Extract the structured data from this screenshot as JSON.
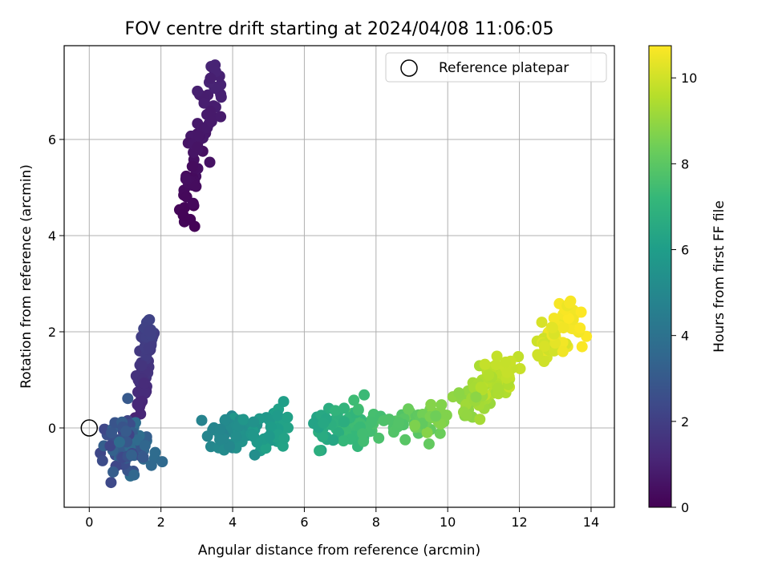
{
  "chart_data": {
    "type": "scatter",
    "title": "FOV centre drift starting at 2024/04/08 11:06:05",
    "xlabel": "Angular distance from reference (arcmin)",
    "ylabel": "Rotation from reference (arcmin)",
    "xlim": [
      -0.7,
      14.65
    ],
    "ylim": [
      -1.65,
      7.95
    ],
    "xticks": [
      0,
      2,
      4,
      6,
      8,
      10,
      12,
      14
    ],
    "yticks": [
      0,
      2,
      4,
      6
    ],
    "grid": true,
    "legend_placement": "top-right",
    "colorbar": {
      "label": "Hours from first FF file",
      "range": [
        0,
        10.75
      ],
      "ticks": [
        0,
        2,
        4,
        6,
        8,
        10
      ],
      "colormap": "viridis"
    },
    "reference": {
      "name": "Reference platepar",
      "x": 0,
      "y": 0
    },
    "clusters": [
      {
        "t": [
          0.05,
          1.1
        ],
        "cx": 3.05,
        "cy": 5.85,
        "dx": 0.95,
        "dy": 3.15,
        "n": 75,
        "s": 0.17
      },
      {
        "t": [
          1.1,
          2.2
        ],
        "cx": 1.55,
        "cy": 1.3,
        "dx": 0.3,
        "dy": 1.7,
        "n": 70,
        "s": 0.1
      },
      {
        "t": [
          2.2,
          3.9
        ],
        "cx": 1.15,
        "cy": -0.45,
        "dx": 0.65,
        "dy": 0.1,
        "n": 80,
        "s": 0.28
      },
      {
        "t": [
          4.8,
          6.2
        ],
        "cx": 4.45,
        "cy": -0.05,
        "dx": 1.95,
        "dy": 0.0,
        "n": 90,
        "s": 0.2
      },
      {
        "t": [
          6.2,
          7.7
        ],
        "cx": 7.1,
        "cy": 0.05,
        "dx": 1.5,
        "dy": 0.1,
        "n": 90,
        "s": 0.2
      },
      {
        "t": [
          7.7,
          8.8
        ],
        "cx": 9.2,
        "cy": 0.1,
        "dx": 1.0,
        "dy": 0.3,
        "n": 50,
        "s": 0.2
      },
      {
        "t": [
          8.8,
          9.9
        ],
        "cx": 11.0,
        "cy": 0.85,
        "dx": 1.2,
        "dy": 0.85,
        "n": 80,
        "s": 0.22
      },
      {
        "t": [
          9.9,
          10.75
        ],
        "cx": 13.05,
        "cy": 1.95,
        "dx": 0.95,
        "dy": 0.75,
        "n": 70,
        "s": 0.2
      }
    ]
  }
}
